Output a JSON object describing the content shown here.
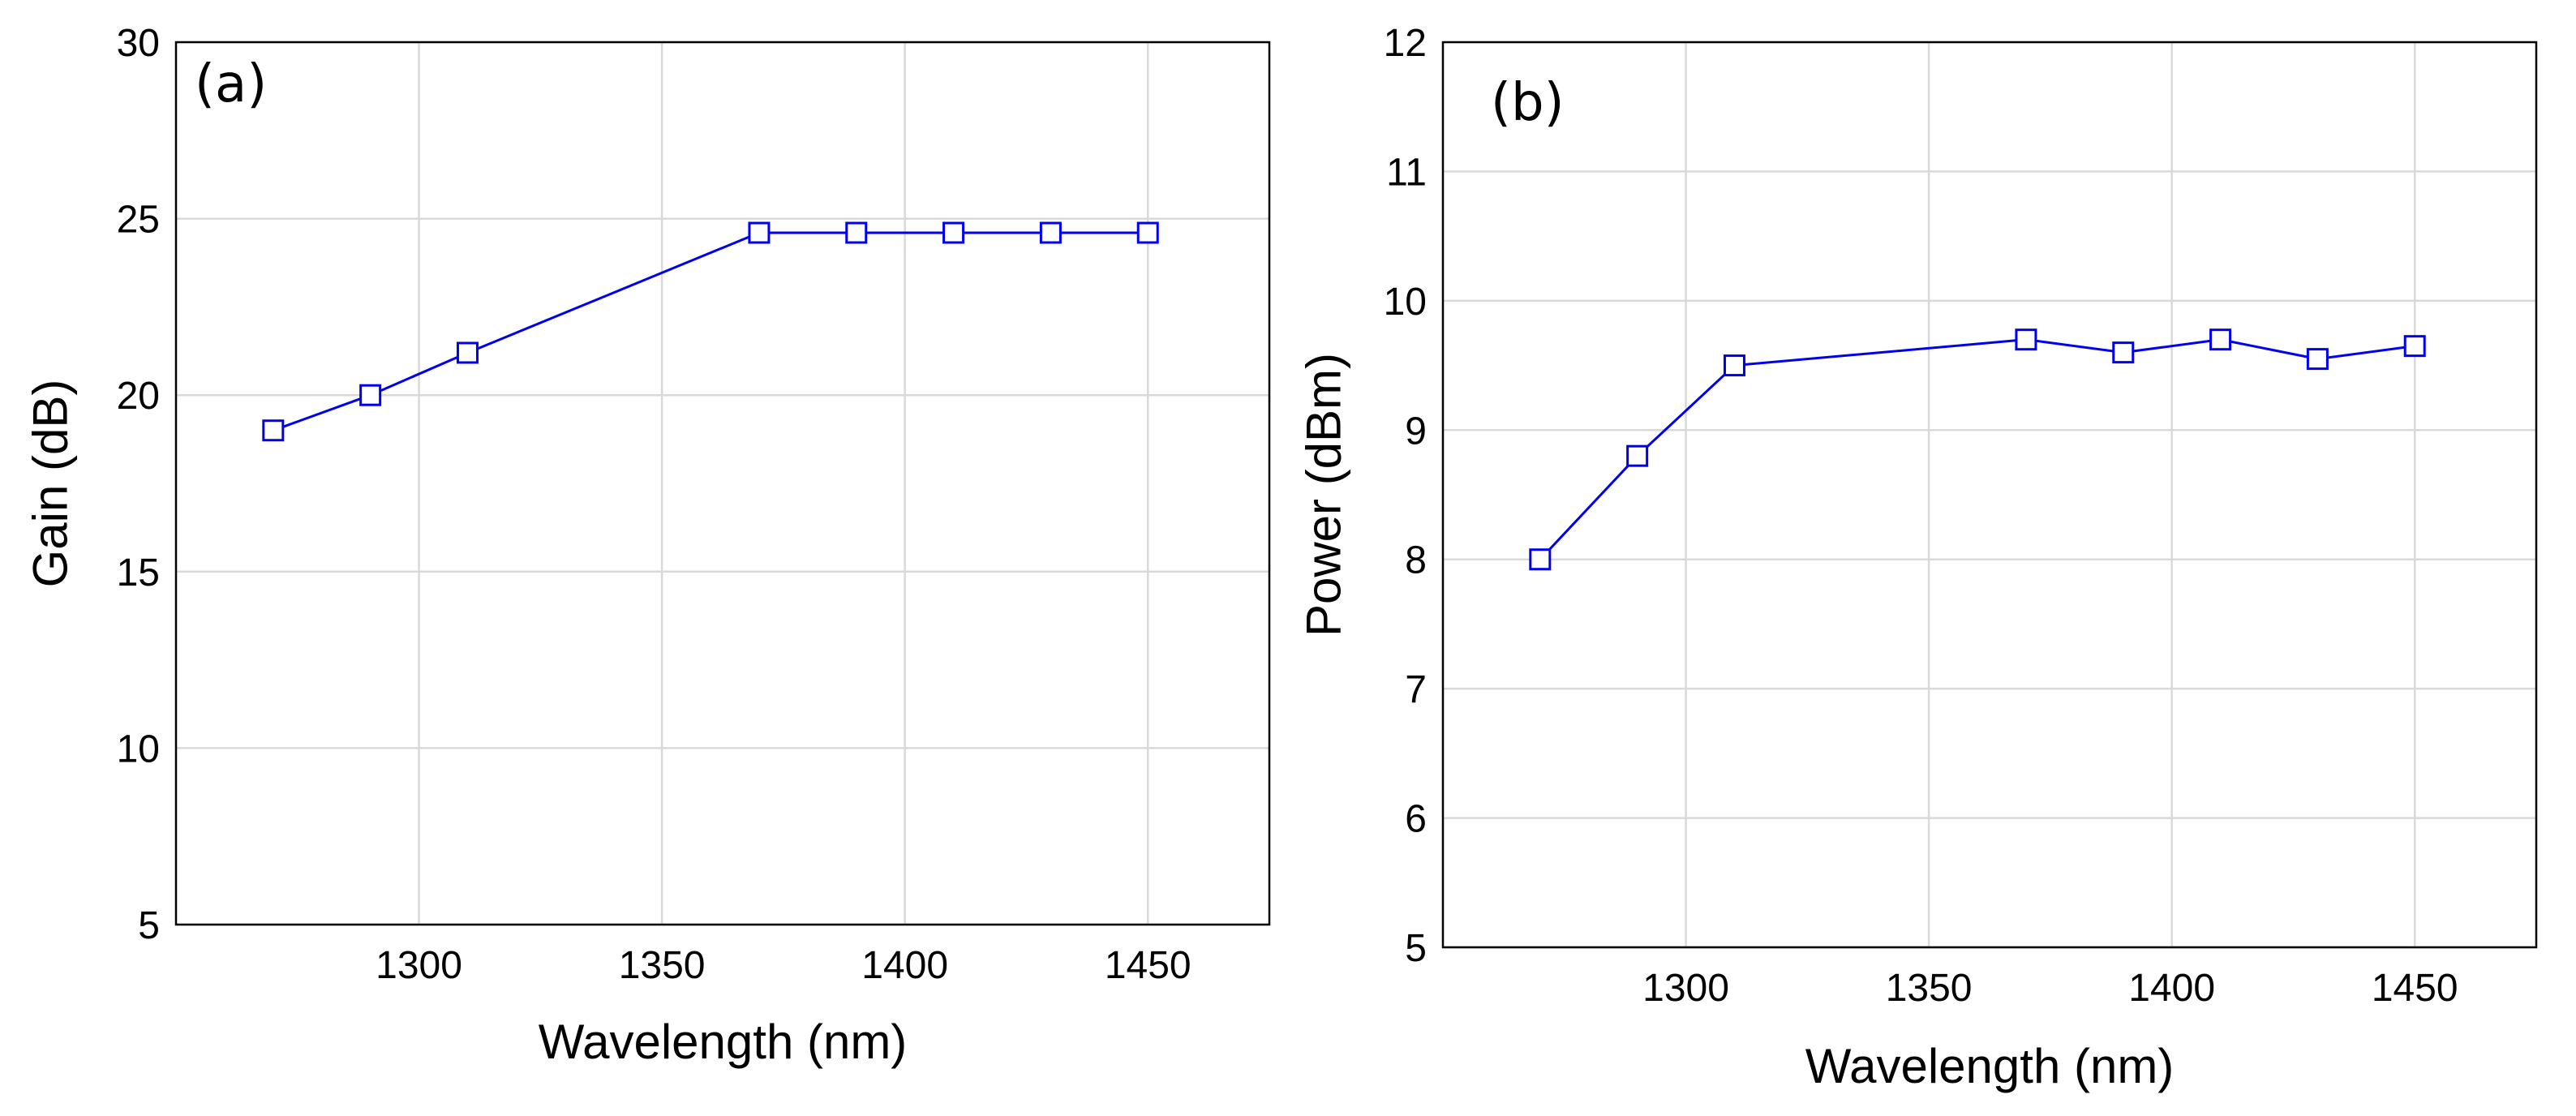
{
  "figure": {
    "panel_labels": [
      "(a)",
      "(b)"
    ]
  },
  "chart_data": [
    {
      "type": "line",
      "panel_label": "(a)",
      "title": "",
      "xlabel": "Wavelength (nm)",
      "ylabel": "Gain (dB)",
      "xlim": [
        1250,
        1475
      ],
      "ylim": [
        5,
        30
      ],
      "xticks": [
        1300,
        1350,
        1400,
        1450
      ],
      "xtick_labels": [
        "1300",
        "1350",
        "1400",
        "1450"
      ],
      "yticks": [
        5,
        10,
        15,
        20,
        25,
        30
      ],
      "ytick_labels": [
        "5",
        "10",
        "15",
        "20",
        "25",
        "30"
      ],
      "grid": true,
      "series": [
        {
          "name": "Gain",
          "color": "#0000ee",
          "marker": "square",
          "x": [
            1270,
            1290,
            1310,
            1370,
            1390,
            1410,
            1430,
            1450
          ],
          "y": [
            19.0,
            20.0,
            21.2,
            24.6,
            24.6,
            24.6,
            24.6,
            24.6
          ]
        }
      ]
    },
    {
      "type": "line",
      "panel_label": "(b)",
      "title": "",
      "xlabel": "Wavelength (nm)",
      "ylabel": "Power (dBm)",
      "xlim": [
        1250,
        1475
      ],
      "ylim": [
        5,
        12
      ],
      "xticks": [
        1300,
        1350,
        1400,
        1450
      ],
      "xtick_labels": [
        "1300",
        "1350",
        "1400",
        "1450"
      ],
      "yticks": [
        5,
        6,
        7,
        8,
        9,
        10,
        11,
        12
      ],
      "ytick_labels": [
        "5",
        "6",
        "7",
        "8",
        "9",
        "10",
        "11",
        "12"
      ],
      "grid": true,
      "series": [
        {
          "name": "Power",
          "color": "#0000ee",
          "marker": "square",
          "x": [
            1270,
            1290,
            1310,
            1370,
            1390,
            1410,
            1430,
            1450
          ],
          "y": [
            8.0,
            8.8,
            9.5,
            9.7,
            9.6,
            9.7,
            9.55,
            9.65
          ]
        }
      ]
    }
  ]
}
